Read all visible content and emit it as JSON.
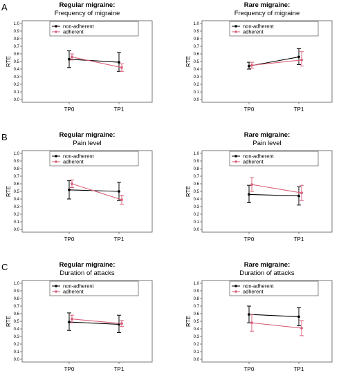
{
  "panel_letters": [
    "A",
    "B",
    "C"
  ],
  "colors": {
    "non_adherent": "#000000",
    "adherent": "#d9607a",
    "axis": "#555555"
  },
  "chart_data": [
    {
      "type": "line",
      "row": 0,
      "col": 0,
      "title": "Regular migraine:",
      "subtitle": "Frequency of migraine",
      "ylabel": "RTE",
      "ylim": [
        0,
        1.0
      ],
      "yticks": [
        "0.0",
        "0.1",
        "0.2",
        "0.3",
        "0.4",
        "0.5",
        "0.6",
        "0.7",
        "0.8",
        "0.9",
        "1.0"
      ],
      "categories": [
        "TP0",
        "TP1"
      ],
      "legend": [
        "non-adherent",
        "adherent"
      ],
      "series": [
        {
          "name": "non-adherent",
          "values": [
            0.53,
            0.49
          ],
          "lower": [
            0.42,
            0.37
          ],
          "upper": [
            0.64,
            0.62
          ]
        },
        {
          "name": "adherent",
          "values": [
            0.56,
            0.42
          ],
          "lower": [
            0.52,
            0.37
          ],
          "upper": [
            0.6,
            0.47
          ]
        }
      ]
    },
    {
      "type": "line",
      "row": 0,
      "col": 1,
      "title": "Rare migraine:",
      "subtitle": "Frequency of migraine",
      "ylabel": "RTE",
      "ylim": [
        0,
        1.0
      ],
      "yticks": [
        "0.0",
        "0.1",
        "0.2",
        "0.3",
        "0.4",
        "0.5",
        "0.6",
        "0.7",
        "0.8",
        "0.9",
        "1.0"
      ],
      "categories": [
        "TP0",
        "TP1"
      ],
      "legend": [
        "non-adherent",
        "adherent"
      ],
      "series": [
        {
          "name": "non-adherent",
          "values": [
            0.44,
            0.56
          ],
          "lower": [
            0.4,
            0.46
          ],
          "upper": [
            0.49,
            0.67
          ]
        },
        {
          "name": "adherent",
          "values": [
            0.45,
            0.52
          ],
          "lower": [
            0.41,
            0.44
          ],
          "upper": [
            0.49,
            0.63
          ]
        }
      ]
    },
    {
      "type": "line",
      "row": 1,
      "col": 0,
      "title": "Regular migraine:",
      "subtitle": "Pain level",
      "ylabel": "RTE",
      "ylim": [
        0,
        1.0
      ],
      "yticks": [
        "0.0",
        "0.1",
        "0.2",
        "0.3",
        "0.4",
        "0.5",
        "0.6",
        "0.7",
        "0.8",
        "0.9",
        "1.0"
      ],
      "categories": [
        "TP0",
        "TP1"
      ],
      "legend": [
        "non-adherent",
        "adherent"
      ],
      "series": [
        {
          "name": "non-adherent",
          "values": [
            0.52,
            0.5
          ],
          "lower": [
            0.4,
            0.38
          ],
          "upper": [
            0.64,
            0.62
          ]
        },
        {
          "name": "adherent",
          "values": [
            0.6,
            0.39
          ],
          "lower": [
            0.55,
            0.33
          ],
          "upper": [
            0.65,
            0.45
          ]
        }
      ]
    },
    {
      "type": "line",
      "row": 1,
      "col": 1,
      "title": "Rare migraine:",
      "subtitle": "Pain level",
      "ylabel": "RTE",
      "ylim": [
        0,
        1.0
      ],
      "yticks": [
        "0.0",
        "0.1",
        "0.2",
        "0.3",
        "0.4",
        "0.5",
        "0.6",
        "0.7",
        "0.8",
        "0.9",
        "1.0"
      ],
      "categories": [
        "TP0",
        "TP1"
      ],
      "legend": [
        "non-adherent",
        "adherent"
      ],
      "series": [
        {
          "name": "non-adherent",
          "values": [
            0.46,
            0.44
          ],
          "lower": [
            0.35,
            0.32
          ],
          "upper": [
            0.58,
            0.56
          ]
        },
        {
          "name": "adherent",
          "values": [
            0.59,
            0.48
          ],
          "lower": [
            0.5,
            0.38
          ],
          "upper": [
            0.68,
            0.58
          ]
        }
      ]
    },
    {
      "type": "line",
      "row": 2,
      "col": 0,
      "title": "Regular migraine:",
      "subtitle": "Duration of attacks",
      "ylabel": "RTE",
      "ylim": [
        0,
        1.0
      ],
      "yticks": [
        "0.0",
        "0.1",
        "0.2",
        "0.3",
        "0.4",
        "0.5",
        "0.6",
        "0.7",
        "0.8",
        "0.9",
        "1.0"
      ],
      "categories": [
        "TP0",
        "TP1"
      ],
      "legend": [
        "non-adherent",
        "adherent"
      ],
      "series": [
        {
          "name": "non-adherent",
          "values": [
            0.49,
            0.46
          ],
          "lower": [
            0.38,
            0.35
          ],
          "upper": [
            0.61,
            0.58
          ]
        },
        {
          "name": "adherent",
          "values": [
            0.53,
            0.47
          ],
          "lower": [
            0.48,
            0.43
          ],
          "upper": [
            0.58,
            0.51
          ]
        }
      ]
    },
    {
      "type": "line",
      "row": 2,
      "col": 1,
      "title": "Rare migraine:",
      "subtitle": "Duration of attacks",
      "ylabel": "RTE",
      "ylim": [
        0,
        1.0
      ],
      "yticks": [
        "0.0",
        "0.1",
        "0.2",
        "0.3",
        "0.4",
        "0.5",
        "0.6",
        "0.7",
        "0.8",
        "0.9",
        "1.0"
      ],
      "categories": [
        "TP0",
        "TP1"
      ],
      "legend": [
        "non-adherent",
        "adherent"
      ],
      "series": [
        {
          "name": "non-adherent",
          "values": [
            0.59,
            0.56
          ],
          "lower": [
            0.48,
            0.44
          ],
          "upper": [
            0.7,
            0.68
          ]
        },
        {
          "name": "adherent",
          "values": [
            0.48,
            0.41
          ],
          "lower": [
            0.37,
            0.31
          ],
          "upper": [
            0.59,
            0.51
          ]
        }
      ]
    }
  ]
}
